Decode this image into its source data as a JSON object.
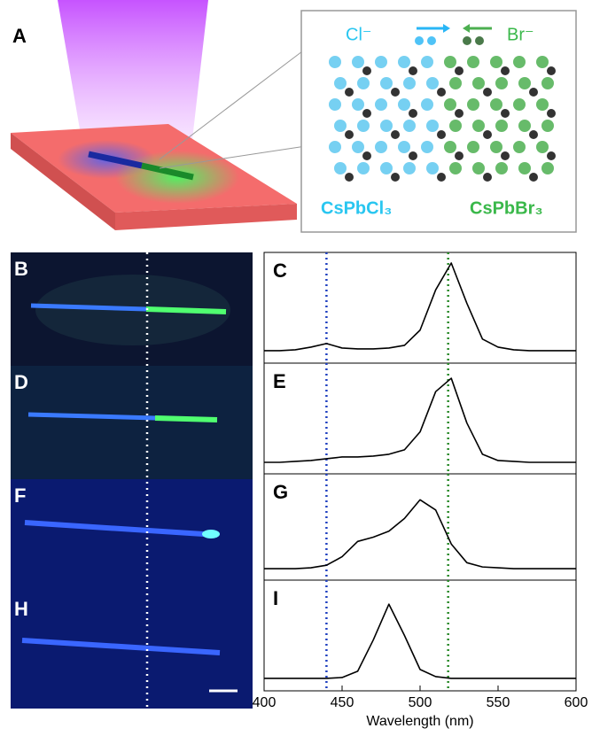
{
  "panel_a": {
    "label": "A",
    "left_ion": "Cl⁻",
    "right_ion": "Br⁻",
    "left_phase": "CsPbCl₃",
    "right_phase": "CsPbBr₃"
  },
  "image_panels": [
    {
      "label": "B"
    },
    {
      "label": "D"
    },
    {
      "label": "F"
    },
    {
      "label": "H"
    }
  ],
  "chart_data": [
    {
      "type": "line",
      "label": "C",
      "color": "#000000",
      "xlim": [
        400,
        600
      ],
      "ylim": [
        0,
        1
      ],
      "x": [
        400,
        410,
        420,
        430,
        440,
        450,
        460,
        470,
        480,
        490,
        500,
        510,
        520,
        530,
        540,
        550,
        560,
        570,
        580,
        590,
        600
      ],
      "values": [
        0.02,
        0.02,
        0.03,
        0.06,
        0.1,
        0.05,
        0.04,
        0.04,
        0.05,
        0.08,
        0.25,
        0.7,
        1.0,
        0.55,
        0.15,
        0.06,
        0.03,
        0.02,
        0.02,
        0.02,
        0.02
      ],
      "reference_lines": [
        {
          "value": 440,
          "color": "#2040c0"
        },
        {
          "value": 518,
          "color": "#2a8a2a"
        }
      ]
    },
    {
      "type": "line",
      "label": "E",
      "color": "#000000",
      "xlim": [
        400,
        600
      ],
      "ylim": [
        0,
        1
      ],
      "x": [
        400,
        410,
        420,
        430,
        440,
        450,
        460,
        470,
        480,
        490,
        500,
        510,
        520,
        530,
        540,
        550,
        560,
        570,
        580,
        590,
        600
      ],
      "values": [
        0.01,
        0.01,
        0.02,
        0.03,
        0.05,
        0.07,
        0.07,
        0.08,
        0.1,
        0.15,
        0.35,
        0.8,
        0.95,
        0.45,
        0.1,
        0.03,
        0.02,
        0.01,
        0.01,
        0.01,
        0.01
      ],
      "reference_lines": [
        {
          "value": 440,
          "color": "#2040c0"
        },
        {
          "value": 518,
          "color": "#2a8a2a"
        }
      ]
    },
    {
      "type": "line",
      "label": "G",
      "color": "#000000",
      "xlim": [
        400,
        600
      ],
      "ylim": [
        0,
        1
      ],
      "x": [
        400,
        410,
        420,
        430,
        440,
        450,
        460,
        470,
        480,
        490,
        500,
        510,
        520,
        530,
        540,
        550,
        560,
        570,
        580,
        590,
        600
      ],
      "values": [
        0.01,
        0.01,
        0.01,
        0.02,
        0.05,
        0.15,
        0.33,
        0.38,
        0.45,
        0.6,
        0.82,
        0.7,
        0.3,
        0.08,
        0.03,
        0.02,
        0.01,
        0.01,
        0.01,
        0.01,
        0.01
      ],
      "reference_lines": [
        {
          "value": 440,
          "color": "#2040c0"
        },
        {
          "value": 518,
          "color": "#2a8a2a"
        }
      ]
    },
    {
      "type": "line",
      "label": "I",
      "color": "#000000",
      "xlim": [
        400,
        600
      ],
      "ylim": [
        0,
        1
      ],
      "x": [
        400,
        410,
        420,
        430,
        440,
        450,
        460,
        470,
        480,
        490,
        500,
        510,
        520,
        530,
        540,
        550,
        560,
        570,
        580,
        590,
        600
      ],
      "values": [
        0.02,
        0.02,
        0.02,
        0.02,
        0.02,
        0.03,
        0.1,
        0.45,
        0.85,
        0.5,
        0.12,
        0.04,
        0.02,
        0.02,
        0.02,
        0.02,
        0.02,
        0.02,
        0.02,
        0.02,
        0.02
      ],
      "reference_lines": [
        {
          "value": 440,
          "color": "#2040c0"
        },
        {
          "value": 518,
          "color": "#2a8a2a"
        }
      ],
      "xticks": [
        400,
        450,
        500,
        550,
        600
      ],
      "xlabel": "Wavelength (nm)"
    }
  ]
}
